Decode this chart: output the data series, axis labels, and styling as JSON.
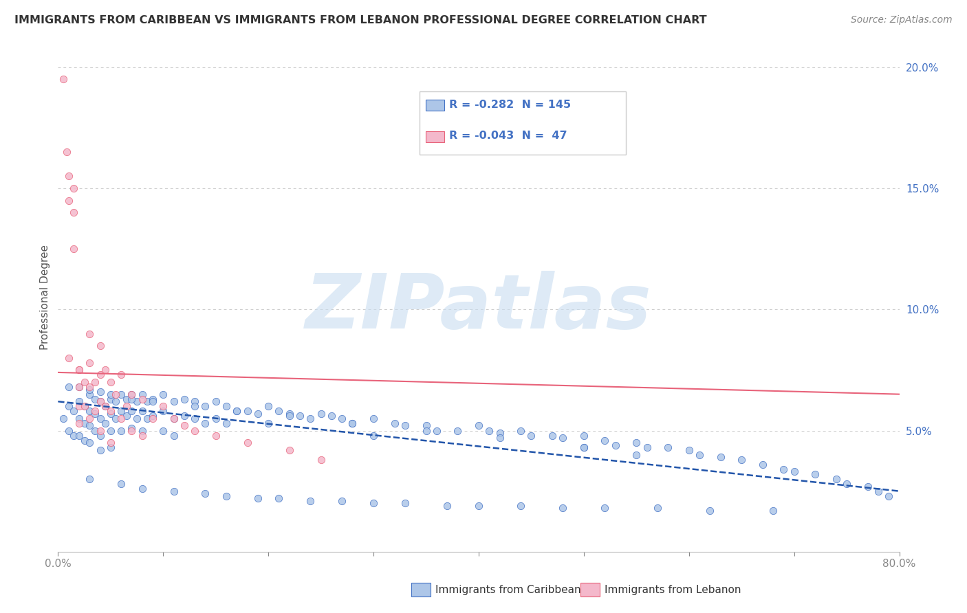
{
  "title": "IMMIGRANTS FROM CARIBBEAN VS IMMIGRANTS FROM LEBANON PROFESSIONAL DEGREE CORRELATION CHART",
  "source": "Source: ZipAtlas.com",
  "ylabel": "Professional Degree",
  "caribbean_r": -0.282,
  "caribbean_n": 145,
  "lebanon_r": -0.043,
  "lebanon_n": 47,
  "caribbean_color": "#adc6e8",
  "caribbean_edge_color": "#4472c4",
  "lebanon_color": "#f4b8cb",
  "lebanon_edge_color": "#e8637a",
  "caribbean_line_color": "#2255aa",
  "lebanon_line_color": "#e8637a",
  "watermark_text": "ZIPatlas",
  "watermark_color": "#c8ddf0",
  "legend_label_1": "Immigrants from Caribbean",
  "legend_label_2": "Immigrants from Lebanon",
  "xlim": [
    0.0,
    0.8
  ],
  "ylim": [
    0.0,
    0.21
  ],
  "caribbean_x": [
    0.005,
    0.01,
    0.01,
    0.015,
    0.015,
    0.02,
    0.02,
    0.02,
    0.025,
    0.025,
    0.025,
    0.03,
    0.03,
    0.03,
    0.03,
    0.035,
    0.035,
    0.035,
    0.04,
    0.04,
    0.04,
    0.04,
    0.045,
    0.045,
    0.05,
    0.05,
    0.05,
    0.05,
    0.055,
    0.055,
    0.06,
    0.06,
    0.06,
    0.065,
    0.065,
    0.07,
    0.07,
    0.07,
    0.075,
    0.075,
    0.08,
    0.08,
    0.08,
    0.085,
    0.085,
    0.09,
    0.09,
    0.1,
    0.1,
    0.1,
    0.11,
    0.11,
    0.11,
    0.12,
    0.12,
    0.13,
    0.13,
    0.14,
    0.14,
    0.15,
    0.15,
    0.16,
    0.16,
    0.17,
    0.18,
    0.19,
    0.2,
    0.2,
    0.21,
    0.22,
    0.23,
    0.24,
    0.25,
    0.26,
    0.27,
    0.28,
    0.3,
    0.3,
    0.32,
    0.33,
    0.35,
    0.36,
    0.38,
    0.4,
    0.41,
    0.42,
    0.44,
    0.45,
    0.47,
    0.48,
    0.5,
    0.5,
    0.52,
    0.53,
    0.55,
    0.56,
    0.58,
    0.6,
    0.61,
    0.63,
    0.65,
    0.67,
    0.69,
    0.7,
    0.72,
    0.74,
    0.75,
    0.77,
    0.78,
    0.79,
    0.5,
    0.55,
    0.42,
    0.35,
    0.28,
    0.22,
    0.17,
    0.13,
    0.09,
    0.07,
    0.05,
    0.04,
    0.03,
    0.02,
    0.01,
    0.03,
    0.06,
    0.08,
    0.11,
    0.14,
    0.16,
    0.19,
    0.21,
    0.24,
    0.27,
    0.3,
    0.33,
    0.37,
    0.4,
    0.44,
    0.48,
    0.52,
    0.57,
    0.62,
    0.68
  ],
  "caribbean_y": [
    0.055,
    0.06,
    0.05,
    0.058,
    0.048,
    0.062,
    0.055,
    0.048,
    0.06,
    0.053,
    0.046,
    0.065,
    0.058,
    0.052,
    0.045,
    0.063,
    0.057,
    0.05,
    0.062,
    0.055,
    0.048,
    0.042,
    0.06,
    0.053,
    0.063,
    0.057,
    0.05,
    0.043,
    0.062,
    0.055,
    0.065,
    0.058,
    0.05,
    0.063,
    0.056,
    0.065,
    0.058,
    0.051,
    0.062,
    0.055,
    0.065,
    0.058,
    0.05,
    0.062,
    0.055,
    0.063,
    0.056,
    0.065,
    0.058,
    0.05,
    0.062,
    0.055,
    0.048,
    0.063,
    0.056,
    0.062,
    0.055,
    0.06,
    0.053,
    0.062,
    0.055,
    0.06,
    0.053,
    0.058,
    0.058,
    0.057,
    0.06,
    0.053,
    0.058,
    0.057,
    0.056,
    0.055,
    0.057,
    0.056,
    0.055,
    0.053,
    0.055,
    0.048,
    0.053,
    0.052,
    0.052,
    0.05,
    0.05,
    0.052,
    0.05,
    0.049,
    0.05,
    0.048,
    0.048,
    0.047,
    0.048,
    0.043,
    0.046,
    0.044,
    0.045,
    0.043,
    0.043,
    0.042,
    0.04,
    0.039,
    0.038,
    0.036,
    0.034,
    0.033,
    0.032,
    0.03,
    0.028,
    0.027,
    0.025,
    0.023,
    0.043,
    0.04,
    0.047,
    0.05,
    0.053,
    0.056,
    0.058,
    0.06,
    0.062,
    0.063,
    0.065,
    0.066,
    0.067,
    0.068,
    0.068,
    0.03,
    0.028,
    0.026,
    0.025,
    0.024,
    0.023,
    0.022,
    0.022,
    0.021,
    0.021,
    0.02,
    0.02,
    0.019,
    0.019,
    0.019,
    0.018,
    0.018,
    0.018,
    0.017,
    0.017
  ],
  "lebanon_x": [
    0.005,
    0.008,
    0.01,
    0.01,
    0.015,
    0.015,
    0.015,
    0.02,
    0.02,
    0.02,
    0.02,
    0.025,
    0.025,
    0.03,
    0.03,
    0.03,
    0.03,
    0.035,
    0.035,
    0.04,
    0.04,
    0.04,
    0.04,
    0.045,
    0.045,
    0.05,
    0.05,
    0.05,
    0.055,
    0.06,
    0.06,
    0.065,
    0.07,
    0.07,
    0.08,
    0.08,
    0.09,
    0.1,
    0.11,
    0.12,
    0.13,
    0.15,
    0.18,
    0.22,
    0.25,
    0.01,
    0.02
  ],
  "lebanon_y": [
    0.195,
    0.165,
    0.155,
    0.145,
    0.15,
    0.14,
    0.125,
    0.075,
    0.068,
    0.06,
    0.053,
    0.07,
    0.06,
    0.09,
    0.078,
    0.068,
    0.055,
    0.07,
    0.058,
    0.085,
    0.073,
    0.062,
    0.05,
    0.075,
    0.06,
    0.07,
    0.058,
    0.045,
    0.065,
    0.073,
    0.055,
    0.06,
    0.065,
    0.05,
    0.063,
    0.048,
    0.055,
    0.06,
    0.055,
    0.052,
    0.05,
    0.048,
    0.045,
    0.042,
    0.038,
    0.08,
    0.075
  ]
}
